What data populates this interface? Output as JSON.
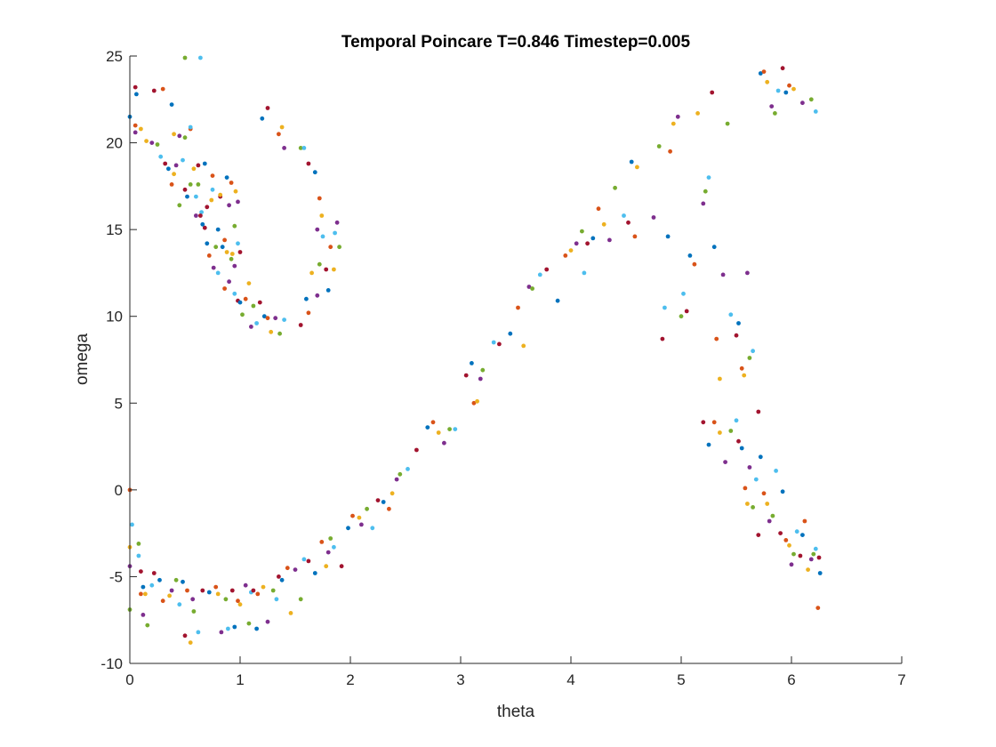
{
  "chart_data": {
    "type": "scatter",
    "title": "Temporal Poincare T=0.846 Timestep=0.005",
    "xlabel": "theta",
    "ylabel": "omega",
    "xlim": [
      0,
      7
    ],
    "ylim": [
      -10,
      25
    ],
    "xticks": [
      "0",
      "1",
      "2",
      "3",
      "4",
      "5",
      "6",
      "7"
    ],
    "yticks": [
      "-10",
      "-5",
      "0",
      "5",
      "10",
      "15",
      "20",
      "25"
    ],
    "grid": false,
    "colors": [
      "#0072BD",
      "#D95319",
      "#EDB120",
      "#7E2F8E",
      "#77AC30",
      "#4DBEEE",
      "#A2142F"
    ],
    "points": [
      [
        0.0,
        21.5
      ],
      [
        0.0,
        0.0
      ],
      [
        0.0,
        -3.3
      ],
      [
        0.0,
        -4.4
      ],
      [
        0.0,
        -6.9
      ],
      [
        0.02,
        -2.0
      ],
      [
        0.05,
        23.2
      ],
      [
        0.06,
        22.8
      ],
      [
        0.05,
        21.0
      ],
      [
        0.1,
        20.8
      ],
      [
        0.05,
        20.6
      ],
      [
        0.08,
        -3.1
      ],
      [
        0.08,
        -3.8
      ],
      [
        0.1,
        -4.7
      ],
      [
        0.12,
        -5.6
      ],
      [
        0.1,
        -6.0
      ],
      [
        0.14,
        -6.0
      ],
      [
        0.12,
        -7.2
      ],
      [
        0.16,
        -7.8
      ],
      [
        0.2,
        -5.5
      ],
      [
        0.22,
        -4.8
      ],
      [
        0.27,
        -5.2
      ],
      [
        0.3,
        -6.4
      ],
      [
        0.36,
        -6.1
      ],
      [
        0.38,
        -5.8
      ],
      [
        0.42,
        -5.2
      ],
      [
        0.45,
        -6.6
      ],
      [
        0.5,
        -8.4
      ],
      [
        0.48,
        -5.3
      ],
      [
        0.52,
        -5.8
      ],
      [
        0.55,
        -8.8
      ],
      [
        0.57,
        -6.3
      ],
      [
        0.58,
        -7.0
      ],
      [
        0.62,
        -8.2
      ],
      [
        0.66,
        -5.8
      ],
      [
        0.72,
        -5.9
      ],
      [
        0.78,
        -5.6
      ],
      [
        0.8,
        -6.0
      ],
      [
        0.83,
        -8.2
      ],
      [
        0.87,
        -6.3
      ],
      [
        0.89,
        -8.0
      ],
      [
        0.93,
        -5.8
      ],
      [
        0.95,
        -7.9
      ],
      [
        0.98,
        -6.4
      ],
      [
        1.0,
        -6.6
      ],
      [
        1.05,
        -5.5
      ],
      [
        1.08,
        -7.7
      ],
      [
        1.1,
        -5.9
      ],
      [
        1.12,
        -5.8
      ],
      [
        1.15,
        -8.0
      ],
      [
        1.16,
        -6.0
      ],
      [
        1.21,
        -5.6
      ],
      [
        1.25,
        -7.6
      ],
      [
        1.3,
        -5.8
      ],
      [
        1.33,
        -6.3
      ],
      [
        1.35,
        -5.0
      ],
      [
        1.38,
        -5.2
      ],
      [
        1.43,
        -4.5
      ],
      [
        1.46,
        -7.1
      ],
      [
        1.5,
        -4.6
      ],
      [
        1.55,
        -6.3
      ],
      [
        1.58,
        -4.0
      ],
      [
        1.62,
        -4.1
      ],
      [
        1.68,
        -4.8
      ],
      [
        1.74,
        -3.0
      ],
      [
        1.78,
        -4.4
      ],
      [
        1.8,
        -3.6
      ],
      [
        1.82,
        -2.8
      ],
      [
        1.85,
        -3.3
      ],
      [
        1.92,
        -4.4
      ],
      [
        1.98,
        -2.2
      ],
      [
        2.02,
        -1.5
      ],
      [
        2.08,
        -1.6
      ],
      [
        2.1,
        -2.0
      ],
      [
        2.15,
        -1.1
      ],
      [
        2.2,
        -2.2
      ],
      [
        2.25,
        -0.6
      ],
      [
        2.3,
        -0.7
      ],
      [
        2.35,
        -1.1
      ],
      [
        2.38,
        -0.2
      ],
      [
        2.42,
        0.6
      ],
      [
        2.45,
        0.9
      ],
      [
        2.52,
        1.2
      ],
      [
        2.6,
        2.3
      ],
      [
        2.7,
        3.6
      ],
      [
        2.75,
        3.9
      ],
      [
        2.8,
        3.3
      ],
      [
        2.85,
        2.7
      ],
      [
        2.9,
        3.5
      ],
      [
        2.95,
        3.5
      ],
      [
        3.05,
        6.6
      ],
      [
        3.1,
        7.3
      ],
      [
        3.12,
        5.0
      ],
      [
        3.15,
        5.1
      ],
      [
        3.18,
        6.4
      ],
      [
        3.2,
        6.9
      ],
      [
        3.3,
        8.5
      ],
      [
        3.35,
        8.4
      ],
      [
        3.45,
        9.0
      ],
      [
        3.52,
        10.5
      ],
      [
        3.57,
        8.3
      ],
      [
        3.62,
        11.7
      ],
      [
        3.65,
        11.6
      ],
      [
        3.72,
        12.4
      ],
      [
        3.78,
        12.7
      ],
      [
        3.88,
        10.9
      ],
      [
        3.95,
        13.5
      ],
      [
        4.0,
        13.8
      ],
      [
        4.05,
        14.2
      ],
      [
        4.1,
        14.9
      ],
      [
        4.12,
        12.5
      ],
      [
        4.15,
        14.2
      ],
      [
        4.2,
        14.5
      ],
      [
        4.25,
        16.2
      ],
      [
        4.3,
        15.3
      ],
      [
        4.35,
        14.4
      ],
      [
        4.4,
        17.4
      ],
      [
        4.48,
        15.8
      ],
      [
        4.52,
        15.4
      ],
      [
        4.55,
        18.9
      ],
      [
        4.58,
        14.6
      ],
      [
        4.6,
        18.6
      ],
      [
        4.75,
        15.7
      ],
      [
        4.8,
        19.8
      ],
      [
        4.85,
        10.5
      ],
      [
        4.83,
        8.7
      ],
      [
        4.88,
        14.6
      ],
      [
        4.9,
        19.5
      ],
      [
        4.93,
        21.1
      ],
      [
        4.97,
        21.5
      ],
      [
        5.0,
        10.0
      ],
      [
        5.02,
        11.3
      ],
      [
        5.05,
        10.3
      ],
      [
        5.08,
        13.5
      ],
      [
        5.12,
        13.0
      ],
      [
        5.15,
        21.7
      ],
      [
        5.2,
        16.5
      ],
      [
        5.22,
        17.2
      ],
      [
        5.25,
        18.0
      ],
      [
        5.28,
        22.9
      ],
      [
        5.3,
        14.0
      ],
      [
        5.32,
        8.7
      ],
      [
        5.35,
        6.4
      ],
      [
        5.38,
        12.4
      ],
      [
        5.42,
        21.1
      ],
      [
        5.45,
        10.1
      ],
      [
        5.5,
        8.9
      ],
      [
        5.52,
        9.6
      ],
      [
        5.55,
        7.0
      ],
      [
        5.57,
        6.6
      ],
      [
        5.6,
        12.5
      ],
      [
        5.62,
        7.6
      ],
      [
        5.65,
        8.0
      ],
      [
        5.7,
        4.5
      ],
      [
        5.72,
        24.0
      ],
      [
        5.75,
        24.1
      ],
      [
        5.78,
        23.5
      ],
      [
        5.82,
        22.1
      ],
      [
        5.85,
        21.7
      ],
      [
        5.88,
        23.0
      ],
      [
        5.92,
        24.3
      ],
      [
        5.95,
        22.9
      ],
      [
        5.98,
        23.3
      ],
      [
        6.02,
        23.1
      ],
      [
        6.1,
        22.3
      ],
      [
        6.18,
        22.5
      ],
      [
        6.22,
        21.8
      ],
      [
        5.2,
        3.9
      ],
      [
        5.25,
        2.6
      ],
      [
        5.3,
        3.9
      ],
      [
        5.35,
        3.3
      ],
      [
        5.4,
        1.6
      ],
      [
        5.45,
        3.4
      ],
      [
        5.5,
        4.0
      ],
      [
        5.52,
        2.8
      ],
      [
        5.55,
        2.4
      ],
      [
        5.58,
        0.1
      ],
      [
        5.6,
        -0.8
      ],
      [
        5.62,
        1.3
      ],
      [
        5.65,
        -1.0
      ],
      [
        5.68,
        0.6
      ],
      [
        5.7,
        -2.6
      ],
      [
        5.72,
        1.9
      ],
      [
        5.75,
        -0.2
      ],
      [
        5.78,
        -0.8
      ],
      [
        5.8,
        -1.8
      ],
      [
        5.83,
        -1.5
      ],
      [
        5.86,
        1.1
      ],
      [
        5.9,
        -2.5
      ],
      [
        5.92,
        -0.1
      ],
      [
        5.95,
        -2.9
      ],
      [
        5.98,
        -3.2
      ],
      [
        6.0,
        -4.3
      ],
      [
        6.02,
        -3.7
      ],
      [
        6.05,
        -2.4
      ],
      [
        6.08,
        -3.8
      ],
      [
        6.1,
        -2.6
      ],
      [
        6.12,
        -1.8
      ],
      [
        6.15,
        -4.6
      ],
      [
        6.18,
        -4.0
      ],
      [
        6.2,
        -3.7
      ],
      [
        6.22,
        -3.4
      ],
      [
        6.25,
        -3.9
      ],
      [
        6.26,
        -4.8
      ],
      [
        6.24,
        -6.8
      ],
      [
        0.15,
        20.1
      ],
      [
        0.2,
        20.0
      ],
      [
        0.25,
        19.9
      ],
      [
        0.28,
        19.2
      ],
      [
        0.32,
        18.8
      ],
      [
        0.35,
        18.5
      ],
      [
        0.38,
        17.6
      ],
      [
        0.4,
        18.2
      ],
      [
        0.42,
        18.7
      ],
      [
        0.45,
        16.4
      ],
      [
        0.48,
        19.0
      ],
      [
        0.5,
        17.3
      ],
      [
        0.52,
        16.9
      ],
      [
        0.55,
        20.8
      ],
      [
        0.58,
        18.5
      ],
      [
        0.6,
        15.8
      ],
      [
        0.62,
        17.6
      ],
      [
        0.65,
        16.0
      ],
      [
        0.68,
        15.1
      ],
      [
        0.7,
        14.2
      ],
      [
        0.72,
        13.5
      ],
      [
        0.74,
        16.7
      ],
      [
        0.76,
        12.8
      ],
      [
        0.78,
        14.0
      ],
      [
        0.8,
        12.5
      ],
      [
        0.82,
        16.9
      ],
      [
        0.84,
        14.0
      ],
      [
        0.86,
        11.6
      ],
      [
        0.88,
        13.7
      ],
      [
        0.9,
        12.0
      ],
      [
        0.92,
        13.3
      ],
      [
        0.95,
        11.3
      ],
      [
        0.98,
        10.9
      ],
      [
        1.0,
        10.8
      ],
      [
        1.05,
        11.0
      ],
      [
        1.08,
        11.9
      ],
      [
        1.1,
        9.4
      ],
      [
        1.12,
        10.6
      ],
      [
        1.15,
        9.6
      ],
      [
        1.18,
        10.8
      ],
      [
        1.22,
        10.0
      ],
      [
        1.25,
        9.9
      ],
      [
        1.28,
        9.1
      ],
      [
        1.32,
        9.9
      ],
      [
        1.36,
        9.0
      ],
      [
        1.4,
        9.8
      ],
      [
        1.55,
        9.5
      ],
      [
        1.6,
        11.0
      ],
      [
        1.62,
        10.2
      ],
      [
        1.65,
        12.5
      ],
      [
        1.7,
        11.2
      ],
      [
        1.72,
        13.0
      ],
      [
        1.75,
        14.6
      ],
      [
        1.78,
        12.7
      ],
      [
        1.8,
        11.5
      ],
      [
        1.82,
        14.0
      ],
      [
        1.85,
        12.7
      ],
      [
        1.88,
        15.4
      ],
      [
        1.9,
        14.0
      ],
      [
        1.86,
        14.8
      ],
      [
        1.25,
        22.0
      ],
      [
        1.2,
        21.4
      ],
      [
        1.35,
        20.5
      ],
      [
        1.38,
        20.9
      ],
      [
        1.4,
        19.7
      ],
      [
        1.55,
        19.7
      ],
      [
        1.58,
        19.7
      ],
      [
        1.62,
        18.8
      ],
      [
        1.68,
        18.3
      ],
      [
        1.72,
        16.8
      ],
      [
        1.74,
        15.8
      ],
      [
        1.7,
        15.0
      ],
      [
        0.5,
        24.9
      ],
      [
        0.64,
        24.9
      ],
      [
        0.22,
        23.0
      ],
      [
        0.38,
        22.2
      ],
      [
        0.3,
        23.1
      ],
      [
        0.4,
        20.5
      ],
      [
        0.45,
        20.4
      ],
      [
        0.5,
        20.3
      ],
      [
        0.55,
        20.9
      ],
      [
        0.62,
        18.7
      ],
      [
        0.68,
        18.8
      ],
      [
        0.75,
        18.1
      ],
      [
        0.82,
        17.0
      ],
      [
        0.9,
        16.4
      ],
      [
        0.95,
        15.2
      ],
      [
        0.98,
        14.2
      ],
      [
        1.0,
        13.7
      ],
      [
        0.88,
        18.0
      ],
      [
        0.92,
        17.7
      ],
      [
        0.96,
        17.2
      ],
      [
        0.98,
        16.6
      ],
      [
        0.55,
        17.6
      ],
      [
        0.6,
        16.9
      ],
      [
        0.64,
        15.8
      ],
      [
        0.8,
        15.0
      ],
      [
        0.86,
        14.4
      ],
      [
        0.93,
        13.6
      ],
      [
        0.95,
        12.9
      ],
      [
        1.02,
        10.1
      ],
      [
        0.75,
        17.3
      ],
      [
        0.7,
        16.3
      ],
      [
        0.66,
        15.3
      ]
    ]
  }
}
